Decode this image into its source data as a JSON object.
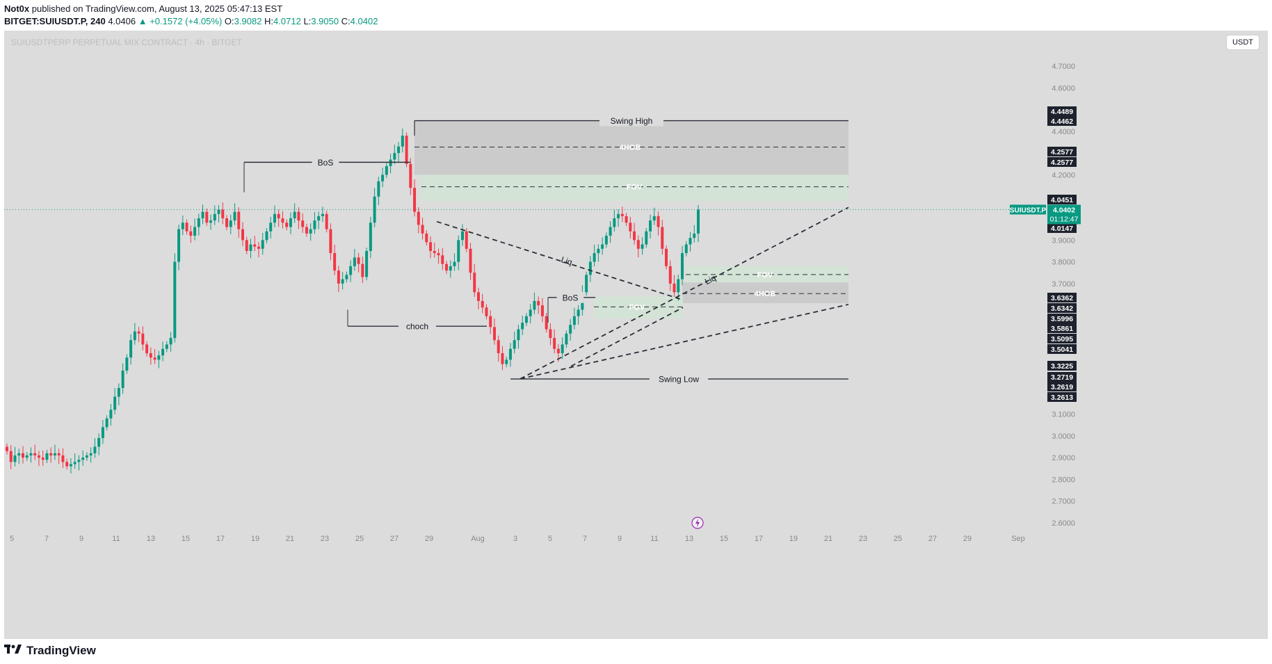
{
  "header": {
    "author": "Not0x",
    "published": " published on TradingView.com, August 13, 2025 05:47:13 EST",
    "symbol": "BITGET:SUIUSDT.P, 240",
    "last": "4.0406",
    "change": "+0.1572 (+4.05%)",
    "o_label": "O:",
    "o": "3.9082",
    "h_label": "H:",
    "h": "4.0712",
    "l_label": "L:",
    "l": "3.9050",
    "c_label": "C:",
    "c": "4.0402"
  },
  "chart_title": "SUIUSDTPERP PERPETUAL MIX CONTRACT · 4h · BITGET",
  "currency_button": "USDT",
  "footer": {
    "brand": "TradingView",
    "logo_icon": "tradingview-logo-icon"
  },
  "colors": {
    "background": "#dcdcdc",
    "up": "#089981",
    "down": "#f23645",
    "zone_gray": "#cbcbcb",
    "zone_green": "#d3e3d6",
    "label_dark": "#1e222d",
    "current_price": "#089981"
  },
  "chart_data": {
    "type": "candlestick",
    "y_axis": {
      "range": [
        2.55,
        4.8
      ],
      "ticks": [
        "4.7000",
        "4.6000",
        "4.4000",
        "4.2000",
        "3.9000",
        "3.8000",
        "3.7000",
        "3.1000",
        "3.0000",
        "2.9000",
        "2.8000",
        "2.7000",
        "2.6000"
      ]
    },
    "x_axis": {
      "ticks": [
        "5",
        "7",
        "9",
        "11",
        "13",
        "15",
        "17",
        "19",
        "21",
        "23",
        "25",
        "27",
        "29",
        "Aug",
        "3",
        "5",
        "7",
        "9",
        "11",
        "13",
        "15",
        "17",
        "19",
        "21",
        "23",
        "25",
        "27",
        "29",
        "Sep"
      ]
    },
    "price_labels": [
      "4.4489",
      "4.4462",
      "4.2577",
      "4.2577",
      "4.0451",
      "4.0147",
      "3.6362",
      "3.6342",
      "3.5996",
      "3.5861",
      "3.5095",
      "3.5041",
      "3.3225",
      "3.2719",
      "3.2619",
      "3.2613"
    ],
    "current_price": {
      "symbol": "SUIUSDT.P",
      "value": "4.0402",
      "countdown": "01:12:47"
    },
    "annotations": {
      "swing_high": "Swing High",
      "swing_low": "Swing Low",
      "bos_1": "BoS",
      "bos_2": "BoS",
      "choch": "choch",
      "liq_1": "Liq",
      "liq_2": "Liq",
      "ob_top": "4HOB",
      "fvg_top": "FGV",
      "fvg_right": "FGV",
      "ob_right": "4HOB",
      "fvg_mid": "FGV"
    },
    "levels": {
      "swing_high": 4.4489,
      "ob_top_mid": 4.3275,
      "fvg_top_mid": 4.145,
      "bos_1": 4.2577,
      "choch": 3.5041,
      "bos_2": 3.6362,
      "swing_low": 3.2613,
      "fvg_right_mid": 3.7415,
      "ob_right_mid": 3.654,
      "fvg_mid_mid": 3.593
    },
    "zones": [
      {
        "name": "top-orderblock",
        "y1": 4.4489,
        "y2": 4.2,
        "fill": "gray"
      },
      {
        "name": "top-fvg",
        "y1": 4.2,
        "y2": 4.08,
        "fill": "green"
      },
      {
        "name": "right-fvg",
        "y1": 3.78,
        "y2": 3.705,
        "fill": "green"
      },
      {
        "name": "right-orderblock",
        "y1": 3.705,
        "y2": 3.61,
        "fill": "gray"
      },
      {
        "name": "mid-fvg",
        "y1": 3.64,
        "y2": 3.54,
        "fill": "green"
      }
    ],
    "candles_close": [
      2.93,
      2.88,
      2.91,
      2.92,
      2.9,
      2.91,
      2.92,
      2.91,
      2.9,
      2.89,
      2.92,
      2.91,
      2.92,
      2.91,
      2.88,
      2.86,
      2.87,
      2.88,
      2.89,
      2.9,
      2.91,
      2.92,
      2.95,
      2.99,
      3.04,
      3.08,
      3.12,
      3.18,
      3.22,
      3.3,
      3.36,
      3.44,
      3.48,
      3.47,
      3.42,
      3.38,
      3.36,
      3.35,
      3.37,
      3.4,
      3.42,
      3.45,
      3.8,
      3.95,
      3.98,
      3.94,
      3.92,
      3.96,
      4.0,
      4.03,
      3.98,
      3.99,
      4.02,
      4.04,
      4.0,
      3.96,
      3.99,
      4.03,
      3.95,
      3.9,
      3.85,
      3.88,
      3.87,
      3.86,
      3.9,
      3.94,
      3.98,
      4.02,
      4.0,
      3.98,
      3.96,
      4.0,
      4.03,
      3.99,
      3.96,
      3.93,
      3.95,
      3.99,
      4.01,
      4.02,
      3.95,
      3.84,
      3.76,
      3.7,
      3.72,
      3.74,
      3.78,
      3.82,
      3.79,
      3.73,
      3.85,
      3.98,
      4.1,
      4.17,
      4.2,
      4.24,
      4.27,
      4.3,
      4.33,
      4.38,
      4.25,
      4.14,
      4.03,
      3.97,
      3.93,
      3.89,
      3.85,
      3.84,
      3.83,
      3.79,
      3.76,
      3.78,
      3.8,
      3.9,
      3.94,
      3.86,
      3.75,
      3.66,
      3.62,
      3.59,
      3.55,
      3.5,
      3.44,
      3.38,
      3.33,
      3.35,
      3.4,
      3.44,
      3.49,
      3.52,
      3.55,
      3.58,
      3.62,
      3.6,
      3.55,
      3.49,
      3.45,
      3.4,
      3.38,
      3.42,
      3.47,
      3.51,
      3.55,
      3.58,
      3.66,
      3.74,
      3.8,
      3.84,
      3.86,
      3.88,
      3.92,
      3.96,
      4.0,
      4.02,
      4.01,
      3.98,
      3.94,
      3.9,
      3.86,
      3.88,
      3.94,
      3.99,
      4.01,
      3.96,
      3.86,
      3.78,
      3.7,
      3.66,
      3.72,
      3.84,
      3.88,
      3.91,
      3.93,
      4.04
    ]
  }
}
